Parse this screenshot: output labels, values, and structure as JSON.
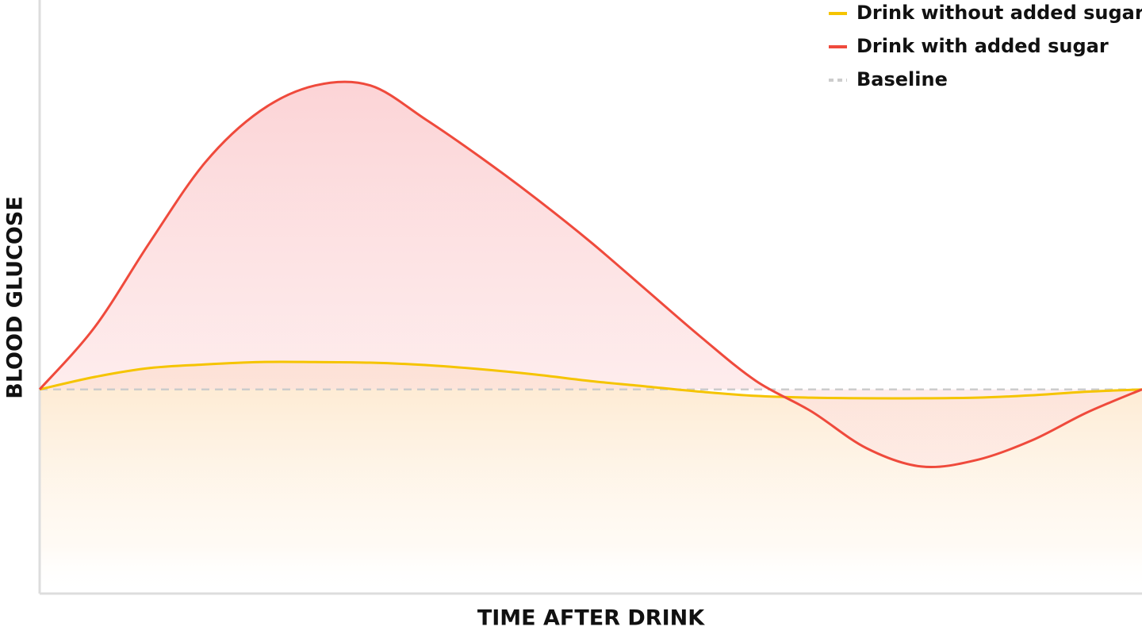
{
  "chart_data": {
    "type": "line",
    "x": [
      0,
      5,
      10,
      15,
      20,
      25,
      30,
      35,
      40,
      45,
      50,
      55,
      60,
      65,
      70,
      75,
      80,
      85,
      90,
      95,
      100
    ],
    "xlim": [
      0,
      100
    ],
    "ylim": [
      0,
      100
    ],
    "x_label": "TIME AFTER DRINK",
    "y_label": "BLOOD GLUCOSE",
    "series": [
      {
        "name": "Drink without added sugar",
        "color": "#f5c400",
        "values": [
          34.4,
          36.5,
          38.0,
          38.6,
          39.0,
          39.0,
          38.9,
          38.5,
          37.8,
          36.9,
          35.8,
          34.9,
          34.0,
          33.3,
          33.0,
          32.9,
          32.9,
          33.0,
          33.4,
          34.0,
          34.4
        ]
      },
      {
        "name": "Drink with added sugar",
        "color": "#ef4a3c",
        "values": [
          34.4,
          44.9,
          59.2,
          72.6,
          81.3,
          85.6,
          85.6,
          79.9,
          73.5,
          66.6,
          59.2,
          51.2,
          43.2,
          35.8,
          30.7,
          24.5,
          21.4,
          22.5,
          25.8,
          30.5,
          34.4
        ]
      }
    ],
    "baseline": {
      "name": "Baseline",
      "value": 34.4,
      "color": "#cccccc"
    },
    "legend": "top-right"
  }
}
